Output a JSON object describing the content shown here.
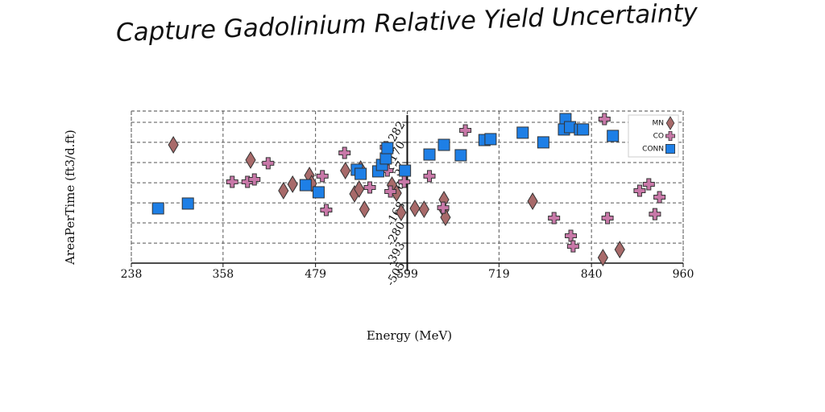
{
  "chart_data": {
    "type": "scatter",
    "title": "Capture Gadolinium Relative Yield Uncertainty",
    "xlabel": "Energy (MeV)",
    "ylabel": "AreaPerTime (ft3/d.ft)",
    "xlim": [
      238,
      960
    ],
    "xticks": [
      238,
      358,
      479,
      599,
      719,
      840,
      960
    ],
    "ylim": [
      -505,
      345
    ],
    "yticks": [
      282,
      170,
      57,
      -56,
      -168,
      -280,
      -393,
      -505
    ],
    "grid": true,
    "legend": "upper right",
    "series": [
      {
        "name": "MN",
        "color": "#a86a6a",
        "marker": "diamond",
        "x": [
          293,
          394,
          437,
          449,
          471,
          474,
          518,
          530,
          536,
          543,
          538,
          575,
          579,
          585,
          591,
          609,
          621,
          647,
          647,
          649,
          763,
          855,
          877
        ],
        "values": [
          156,
          71,
          -100,
          -64,
          -15,
          -60,
          12,
          -118,
          -91,
          -204,
          21,
          125,
          -69,
          -114,
          -222,
          -199,
          -204,
          -150,
          -208,
          -249,
          -159,
          -474,
          -429
        ]
      },
      {
        "name": "CO",
        "color": "#c878a8",
        "marker": "plus",
        "x": [
          370,
          390,
          399,
          417,
          488,
          493,
          517,
          550,
          571,
          573,
          577,
          595,
          628,
          646,
          675,
          791,
          813,
          816,
          857,
          861,
          903,
          915,
          923,
          929
        ],
        "values": [
          -51,
          -51,
          -37,
          53,
          -19,
          -208,
          111,
          -82,
          143,
          12,
          -105,
          -51,
          -19,
          -195,
          237,
          -253,
          -352,
          -411,
          300,
          -253,
          -100,
          -64,
          -231,
          -136
        ]
      },
      {
        "name": "CONN",
        "color": "#1e7fe6",
        "marker": "square",
        "x": [
          273,
          312,
          466,
          483,
          533,
          538,
          561,
          566,
          571,
          573,
          596,
          628,
          647,
          669,
          700,
          708,
          750,
          777,
          806,
          804,
          812,
          825,
          829,
          868
        ],
        "values": [
          -199,
          -172,
          -69,
          -109,
          17,
          -6,
          8,
          44,
          80,
          138,
          12,
          102,
          156,
          98,
          183,
          188,
          224,
          170,
          300,
          242,
          255,
          242,
          242,
          206
        ]
      }
    ]
  }
}
